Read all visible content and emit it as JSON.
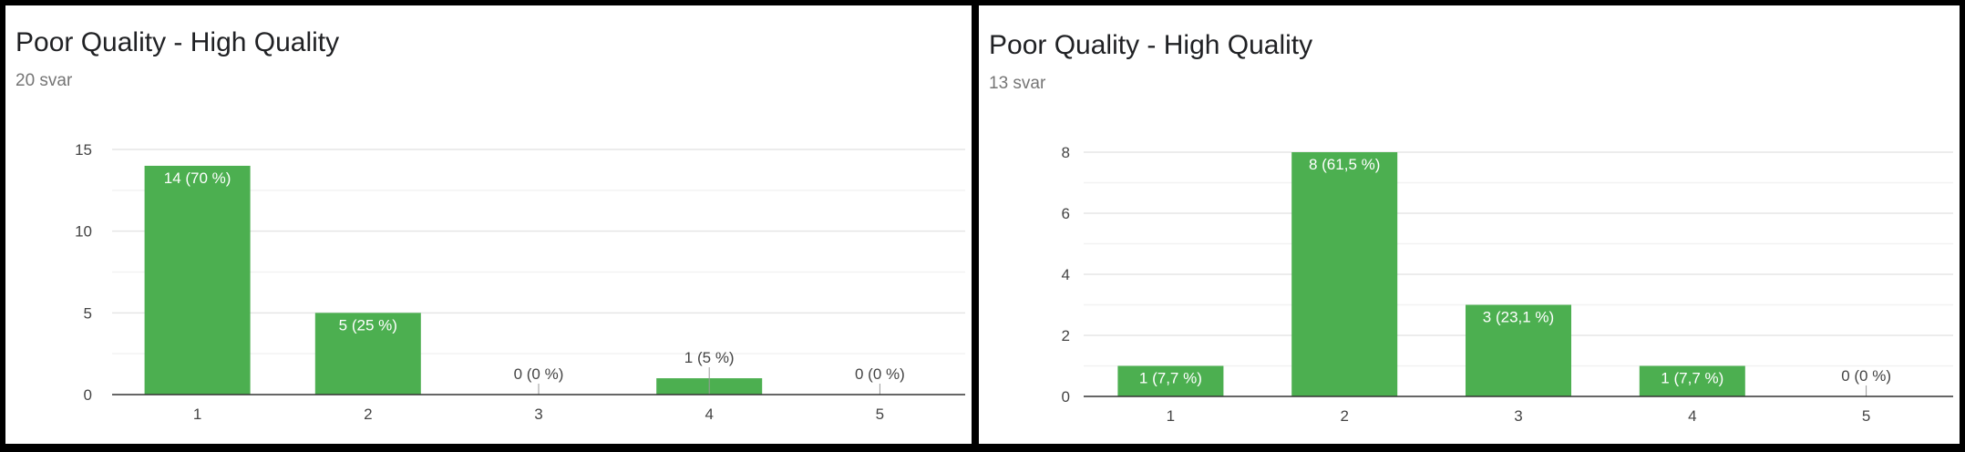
{
  "colors": {
    "bar": "#4caf50",
    "grid": "#e6e6e6",
    "axis": "#333333",
    "label_text": "#ffffff",
    "outside_label_text": "#444444",
    "tick_text": "#444444"
  },
  "charts": [
    {
      "title": "Poor Quality - High Quality",
      "subtitle": "20 svar"
    },
    {
      "title": "Poor Quality - High Quality",
      "subtitle": "13 svar"
    }
  ],
  "chart_data": [
    {
      "type": "bar",
      "title": "Poor Quality - High Quality",
      "subtitle": "20 svar",
      "categories": [
        "1",
        "2",
        "3",
        "4",
        "5"
      ],
      "values": [
        14,
        5,
        0,
        1,
        0
      ],
      "data_labels": [
        "14 (70 %)",
        "5 (25 %)",
        "0 (0 %)",
        "1 (5 %)",
        "0 (0 %)"
      ],
      "y_ticks": [
        0,
        5,
        10,
        15
      ],
      "ylim": [
        0,
        15
      ],
      "grid": true,
      "legend": "none"
    },
    {
      "type": "bar",
      "title": "Poor Quality - High Quality",
      "subtitle": "13 svar",
      "categories": [
        "1",
        "2",
        "3",
        "4",
        "5"
      ],
      "values": [
        1,
        8,
        3,
        1,
        0
      ],
      "data_labels": [
        "1 (7,7 %)",
        "8 (61,5 %)",
        "3 (23,1 %)",
        "1 (7,7 %)",
        "0 (0 %)"
      ],
      "y_ticks": [
        0,
        2,
        4,
        6,
        8
      ],
      "ylim": [
        0,
        8
      ],
      "grid": true,
      "legend": "none"
    }
  ]
}
